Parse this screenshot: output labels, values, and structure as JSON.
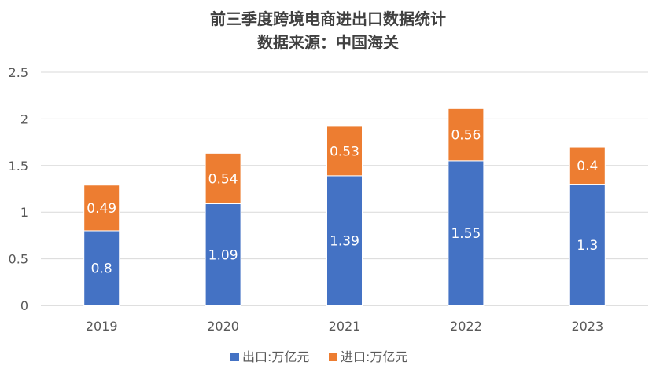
{
  "chart_data": {
    "type": "bar",
    "stacked": true,
    "title": "前三季度跨境电商进出口数据统计",
    "subtitle": "数据来源：中国海关",
    "categories": [
      "2019",
      "2020",
      "2021",
      "2022",
      "2023"
    ],
    "series": [
      {
        "name": "出口:万亿元",
        "color": "#4472C4",
        "values": [
          0.8,
          1.09,
          1.39,
          1.55,
          1.3
        ]
      },
      {
        "name": "进口:万亿元",
        "color": "#ED7D31",
        "values": [
          0.49,
          0.54,
          0.53,
          0.56,
          0.4
        ]
      }
    ],
    "y_ticks": [
      "0",
      "0.5",
      "1",
      "1.5",
      "2",
      "2.5"
    ],
    "ylim": [
      0,
      2.5
    ],
    "grid": true,
    "legend_position": "bottom"
  }
}
